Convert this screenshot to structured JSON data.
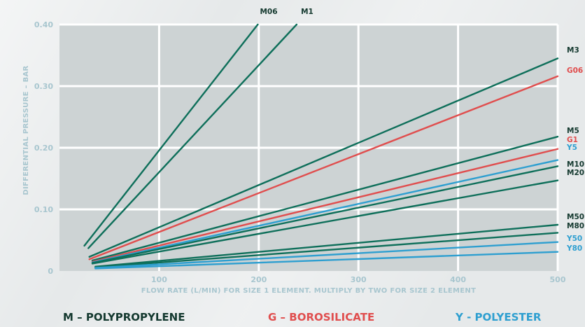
{
  "colors": {
    "polypropylene": "#0e6f5a",
    "borosilicate": "#e04e4e",
    "polyester": "#2e9fd0",
    "tick_text": "#a8c6cf",
    "plot_bg": "#cdd3d4",
    "grid": "#ffffff"
  },
  "chart_data": {
    "type": "line",
    "xlabel": "FLOW RATE (L/MIN) FOR SIZE 1 ELEMENT. MULTIPLY BY TWO FOR SIZE 2 ELEMENT",
    "ylabel": "DIFFERENTIAL PRESSURE – BAR",
    "xlim": [
      0,
      500
    ],
    "ylim": [
      0,
      0.4
    ],
    "x_ticks": [
      "100",
      "200",
      "300",
      "400",
      "500"
    ],
    "y_ticks": [
      "0",
      "0.10",
      "0.20",
      "0.30",
      "0.40"
    ],
    "grid": true,
    "series": [
      {
        "name": "M06",
        "material": "polypropylene",
        "x": [
          25,
          199
        ],
        "y": [
          0.041,
          0.4
        ]
      },
      {
        "name": "M1",
        "material": "polypropylene",
        "x": [
          29,
          238
        ],
        "y": [
          0.037,
          0.4
        ]
      },
      {
        "name": "M3",
        "material": "polypropylene",
        "x": [
          30,
          500
        ],
        "y": [
          0.023,
          0.345
        ]
      },
      {
        "name": "G06",
        "material": "borosilicate",
        "x": [
          30,
          500
        ],
        "y": [
          0.019,
          0.316
        ]
      },
      {
        "name": "M5",
        "material": "polypropylene",
        "x": [
          33,
          500
        ],
        "y": [
          0.017,
          0.218
        ]
      },
      {
        "name": "G1",
        "material": "borosilicate",
        "x": [
          33,
          500
        ],
        "y": [
          0.015,
          0.198
        ]
      },
      {
        "name": "Y5",
        "material": "polyester",
        "x": [
          33,
          500
        ],
        "y": [
          0.014,
          0.18
        ]
      },
      {
        "name": "M10",
        "material": "polypropylene",
        "x": [
          33,
          500
        ],
        "y": [
          0.013,
          0.17
        ]
      },
      {
        "name": "M20",
        "material": "polypropylene",
        "x": [
          33,
          500
        ],
        "y": [
          0.012,
          0.147
        ]
      },
      {
        "name": "M50",
        "material": "polypropylene",
        "x": [
          36,
          500
        ],
        "y": [
          0.007,
          0.075
        ]
      },
      {
        "name": "M80",
        "material": "polypropylene",
        "x": [
          36,
          500
        ],
        "y": [
          0.006,
          0.062
        ]
      },
      {
        "name": "Y50",
        "material": "polyester",
        "x": [
          36,
          500
        ],
        "y": [
          0.005,
          0.047
        ]
      },
      {
        "name": "Y80",
        "material": "polyester",
        "x": [
          36,
          500
        ],
        "y": [
          0.004,
          0.031
        ]
      }
    ]
  },
  "legend": {
    "polypropylene": "M – POLYPROPYLENE",
    "borosilicate": "G – BOROSILICATE",
    "polyester": "Y - POLYESTER"
  }
}
